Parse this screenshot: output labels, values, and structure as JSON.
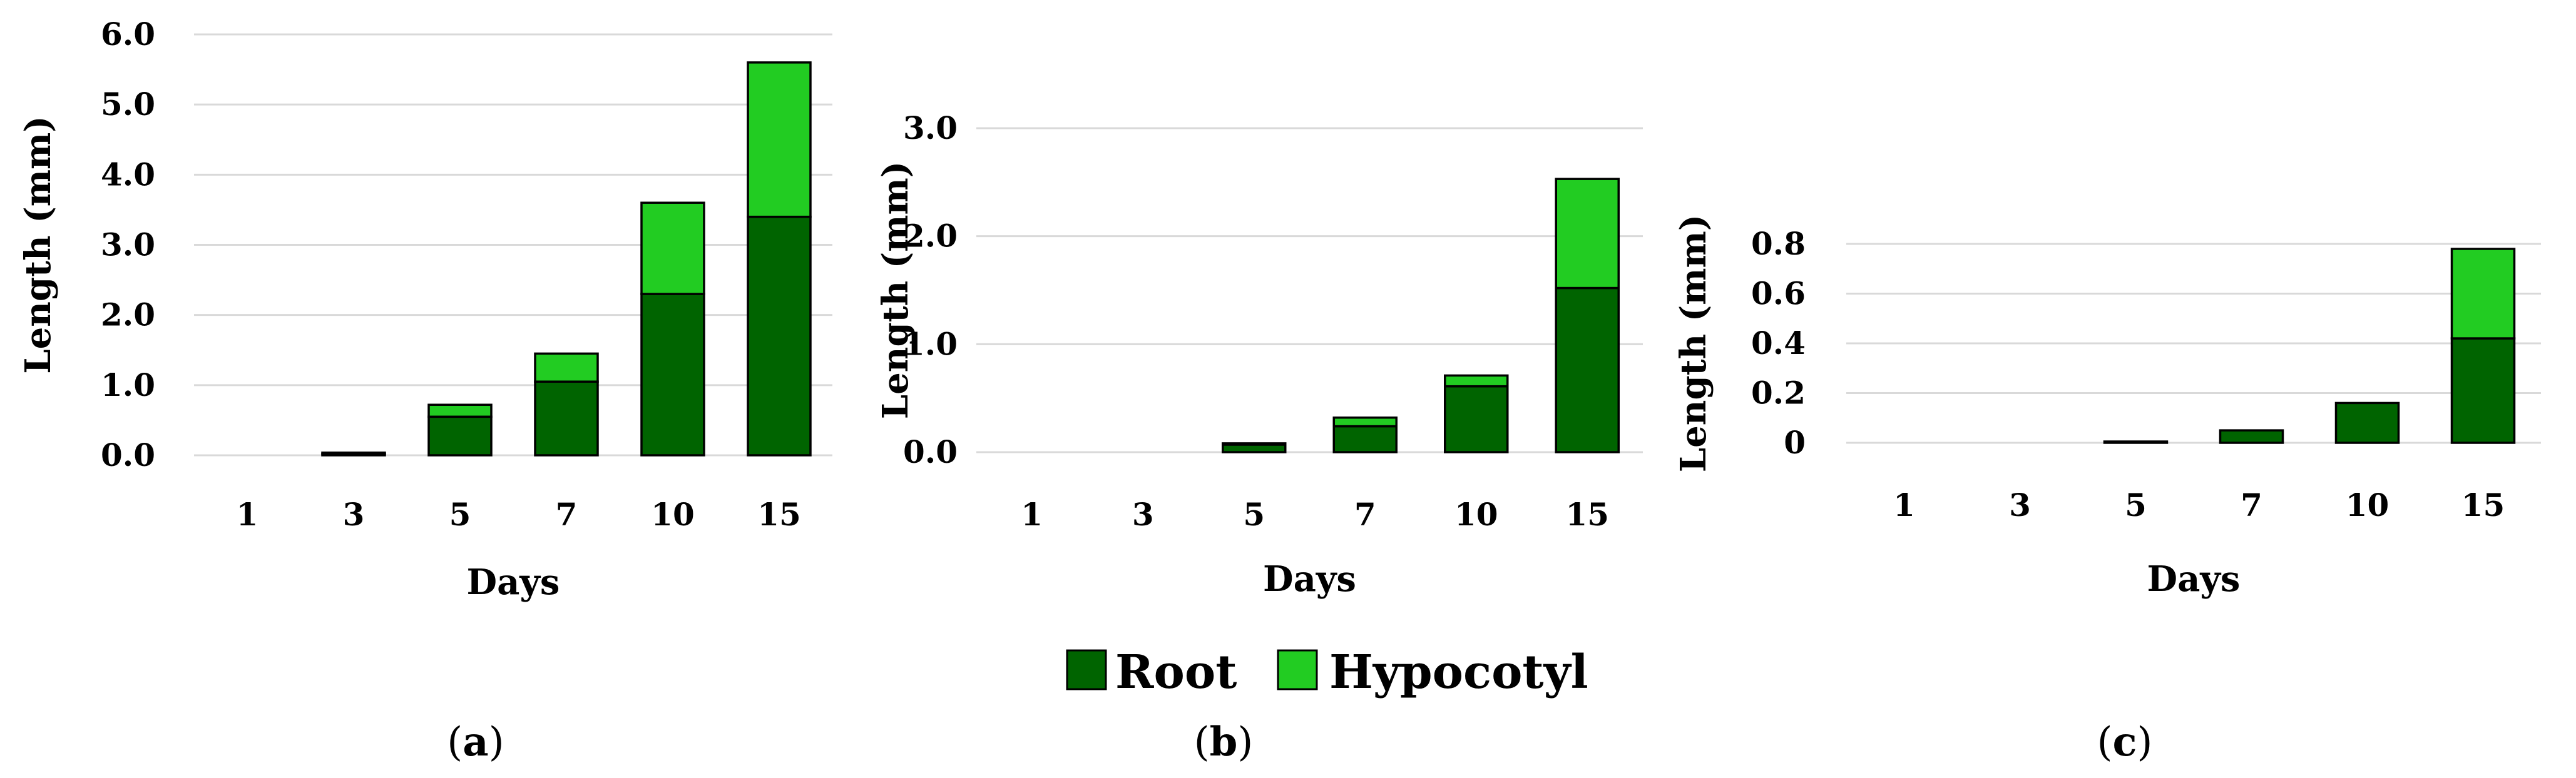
{
  "chart_data": [
    {
      "type": "bar",
      "stacked": true,
      "panel": "a",
      "categories": [
        "1",
        "3",
        "5",
        "7",
        "10",
        "15"
      ],
      "series": [
        {
          "name": "Root",
          "values": [
            0,
            0.02,
            0.55,
            1.05,
            2.3,
            3.4
          ]
        },
        {
          "name": "Hypocotyl",
          "values": [
            0,
            0.01,
            0.17,
            0.4,
            1.3,
            2.2
          ]
        }
      ],
      "xlabel": "Days",
      "ylabel": "Length (mm)",
      "ylim": [
        0,
        6.0
      ],
      "yticks": [
        "0.0",
        "1.0",
        "2.0",
        "3.0",
        "4.0",
        "5.0",
        "6.0"
      ],
      "grid": true
    },
    {
      "type": "bar",
      "stacked": true,
      "panel": "b",
      "categories": [
        "1",
        "3",
        "5",
        "7",
        "10",
        "15"
      ],
      "series": [
        {
          "name": "Root",
          "values": [
            0,
            0,
            0.07,
            0.24,
            0.61,
            1.52
          ]
        },
        {
          "name": "Hypocotyl",
          "values": [
            0,
            0,
            0.01,
            0.08,
            0.1,
            1.01
          ]
        }
      ],
      "xlabel": "Days",
      "ylabel": "Length (mm)",
      "ylim": [
        0,
        3.0
      ],
      "yticks": [
        "0.0",
        "1.0",
        "2.0",
        "3.0"
      ],
      "grid": true
    },
    {
      "type": "bar",
      "stacked": true,
      "panel": "c",
      "categories": [
        "1",
        "3",
        "5",
        "7",
        "10",
        "15"
      ],
      "series": [
        {
          "name": "Root",
          "values": [
            0,
            0,
            0.004,
            0.05,
            0.16,
            0.42
          ]
        },
        {
          "name": "Hypocotyl",
          "values": [
            0,
            0,
            0,
            0,
            0,
            0.36
          ]
        }
      ],
      "xlabel": "Days",
      "ylabel": "Length (mm)",
      "ylim": [
        0,
        0.8
      ],
      "yticks": [
        "0",
        "0.2",
        "0.4",
        "0.6",
        "0.8"
      ],
      "grid": true
    }
  ],
  "legend": {
    "placement": "bottom-center",
    "items": [
      {
        "label": "Root",
        "color": "#006400"
      },
      {
        "label": "Hypocotyl",
        "color": "#22cc22"
      }
    ]
  },
  "panel_labels": [
    {
      "open": "(",
      "letter": "a",
      "close": ")"
    },
    {
      "open": "(",
      "letter": "b",
      "close": ")"
    },
    {
      "open": "(",
      "letter": "c",
      "close": ")"
    }
  ],
  "colors": {
    "root": "#006400",
    "hypocotyl": "#22cc22",
    "grid": "#d9d9d9"
  }
}
